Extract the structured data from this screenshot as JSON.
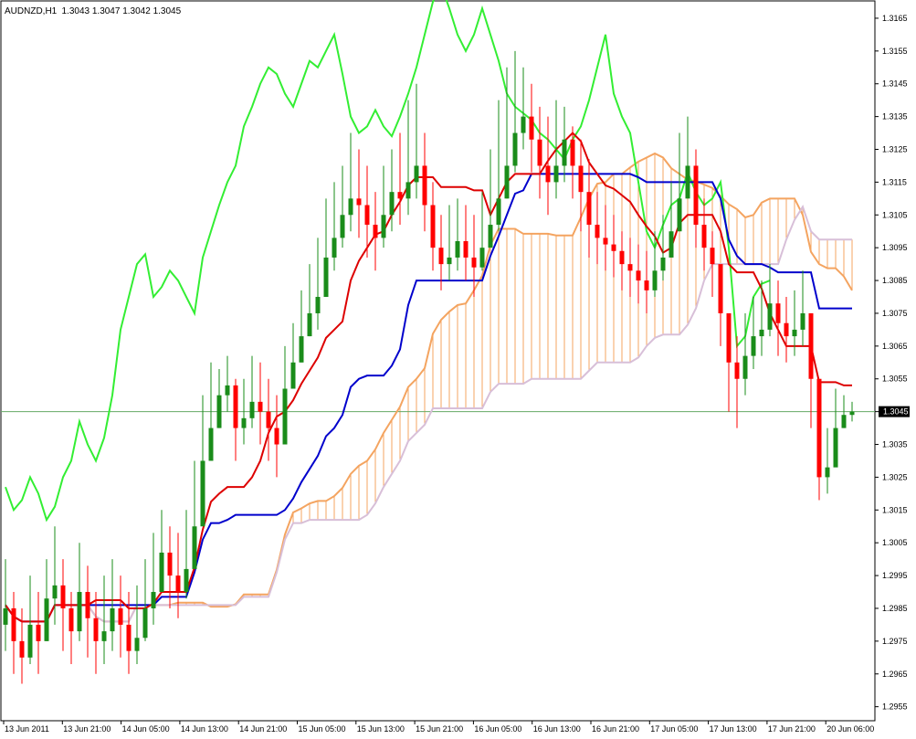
{
  "header": {
    "symbol": "AUDNZD,H1",
    "ohlc": "1.3043 1.3047 1.3042 1.3045"
  },
  "price_axis": {
    "ticks": [
      "1.3165",
      "1.3155",
      "1.3145",
      "1.3135",
      "1.3125",
      "1.3115",
      "1.3105",
      "1.3095",
      "1.3085",
      "1.3075",
      "1.3065",
      "1.3055",
      "1.3045",
      "1.3035",
      "1.3025",
      "1.3015",
      "1.3005",
      "1.2995",
      "1.2985",
      "1.2975",
      "1.2965",
      "1.2955"
    ],
    "current_price": "1.3045"
  },
  "time_axis": {
    "ticks": [
      "13 Jun 2011",
      "13 Jun 21:00",
      "14 Jun 05:00",
      "14 Jun 13:00",
      "14 Jun 21:00",
      "15 Jun 05:00",
      "15 Jun 13:00",
      "15 Jun 21:00",
      "16 Jun 05:00",
      "16 Jun 13:00",
      "16 Jun 21:00",
      "17 Jun 05:00",
      "17 Jun 13:00",
      "17 Jun 21:00",
      "20 Jun 06:00"
    ]
  },
  "colors": {
    "bull": "#1a8c1a",
    "bear": "#ff0000",
    "tenkan": "#dd0000",
    "kijun": "#0000cc",
    "chikou": "#33ee33",
    "senkou_a": "#f4a460",
    "senkou_b": "#d8bfd8",
    "current_line": "#66aa66"
  },
  "chart_data": {
    "type": "candlestick",
    "symbol": "AUDNZD",
    "timeframe": "H1",
    "indicator": "Ichimoku Kinko Hyo",
    "ylim": [
      1.2951,
      1.317
    ],
    "last_close": 1.3045,
    "close": [
      1.2985,
      1.2975,
      1.297,
      1.298,
      1.2975,
      1.2988,
      1.2992,
      1.2985,
      1.2978,
      1.299,
      1.2982,
      1.2975,
      1.2978,
      1.2985,
      1.298,
      1.2972,
      1.2976,
      1.2985,
      1.299,
      1.3002,
      1.2995,
      1.299,
      1.2997,
      1.301,
      1.303,
      1.304,
      1.305,
      1.3053,
      1.304,
      1.3043,
      1.3048,
      1.3045,
      1.304,
      1.3035,
      1.3052,
      1.306,
      1.3068,
      1.3075,
      1.308,
      1.3092,
      1.3098,
      1.3105,
      1.311,
      1.3108,
      1.3102,
      1.3098,
      1.3105,
      1.3112,
      1.311,
      1.3115,
      1.312,
      1.3108,
      1.3095,
      1.309,
      1.3092,
      1.3097,
      1.3092,
      1.3089,
      1.3095,
      1.3102,
      1.311,
      1.312,
      1.313,
      1.3135,
      1.3128,
      1.312,
      1.3115,
      1.312,
      1.3128,
      1.312,
      1.3112,
      1.3102,
      1.3098,
      1.3096,
      1.3094,
      1.309,
      1.3088,
      1.3085,
      1.3082,
      1.3088,
      1.3092,
      1.31,
      1.311,
      1.312,
      1.3102,
      1.3095,
      1.309,
      1.3075,
      1.306,
      1.3055,
      1.3062,
      1.3068,
      1.307,
      1.3078,
      1.3072,
      1.3068,
      1.307,
      1.3075,
      1.3055,
      1.3025,
      1.3028,
      1.304,
      1.3044,
      1.3045
    ],
    "high": [
      1.3,
      1.299,
      1.2985,
      1.2995,
      1.299,
      1.3,
      1.301,
      1.3,
      1.299,
      1.3005,
      1.2998,
      1.299,
      1.2995,
      1.3,
      1.2995,
      1.299,
      1.2992,
      1.3,
      1.3008,
      1.3015,
      1.301,
      1.3008,
      1.3015,
      1.303,
      1.305,
      1.306,
      1.3058,
      1.3062,
      1.3055,
      1.3055,
      1.3062,
      1.306,
      1.3055,
      1.305,
      1.3065,
      1.3072,
      1.3082,
      1.309,
      1.3098,
      1.311,
      1.3115,
      1.312,
      1.313,
      1.3125,
      1.312,
      1.3112,
      1.312,
      1.3125,
      1.313,
      1.314,
      1.3145,
      1.313,
      1.3115,
      1.3105,
      1.3108,
      1.311,
      1.3108,
      1.3105,
      1.3112,
      1.3125,
      1.314,
      1.315,
      1.3155,
      1.315,
      1.3145,
      1.3138,
      1.3135,
      1.314,
      1.3138,
      1.3132,
      1.3128,
      1.3122,
      1.3112,
      1.3108,
      1.3105,
      1.31,
      1.3098,
      1.3096,
      1.3094,
      1.31,
      1.3105,
      1.3115,
      1.313,
      1.3135,
      1.3125,
      1.311,
      1.31,
      1.3085,
      1.3075,
      1.3068,
      1.3075,
      1.308,
      1.3085,
      1.309,
      1.3085,
      1.308,
      1.3082,
      1.3088,
      1.3075,
      1.3045,
      1.304,
      1.3052,
      1.305,
      1.3048
    ],
    "low": [
      1.2972,
      1.2965,
      1.2962,
      1.2968,
      1.2965,
      1.2975,
      1.298,
      1.2972,
      1.2968,
      1.2975,
      1.297,
      1.2965,
      1.2968,
      1.2972,
      1.297,
      1.2965,
      1.2968,
      1.2975,
      1.298,
      1.2992,
      1.2985,
      1.2982,
      1.2988,
      1.2998,
      1.3015,
      1.3032,
      1.304,
      1.3045,
      1.303,
      1.3035,
      1.304,
      1.3035,
      1.303,
      1.3025,
      1.304,
      1.3052,
      1.306,
      1.3068,
      1.307,
      1.308,
      1.3088,
      1.3095,
      1.31,
      1.3098,
      1.3092,
      1.3088,
      1.3095,
      1.31,
      1.3102,
      1.3105,
      1.311,
      1.31,
      1.3088,
      1.3082,
      1.3085,
      1.3088,
      1.3085,
      1.308,
      1.3088,
      1.3095,
      1.31,
      1.311,
      1.3118,
      1.3125,
      1.3118,
      1.311,
      1.3105,
      1.311,
      1.3115,
      1.311,
      1.31,
      1.3092,
      1.309,
      1.3088,
      1.3086,
      1.3082,
      1.308,
      1.3078,
      1.3075,
      1.308,
      1.3085,
      1.3092,
      1.31,
      1.311,
      1.3095,
      1.3088,
      1.308,
      1.3065,
      1.3045,
      1.304,
      1.305,
      1.3058,
      1.3062,
      1.3068,
      1.3062,
      1.306,
      1.3062,
      1.3065,
      1.304,
      1.3018,
      1.302,
      1.303,
      1.304,
      1.3042
    ]
  }
}
